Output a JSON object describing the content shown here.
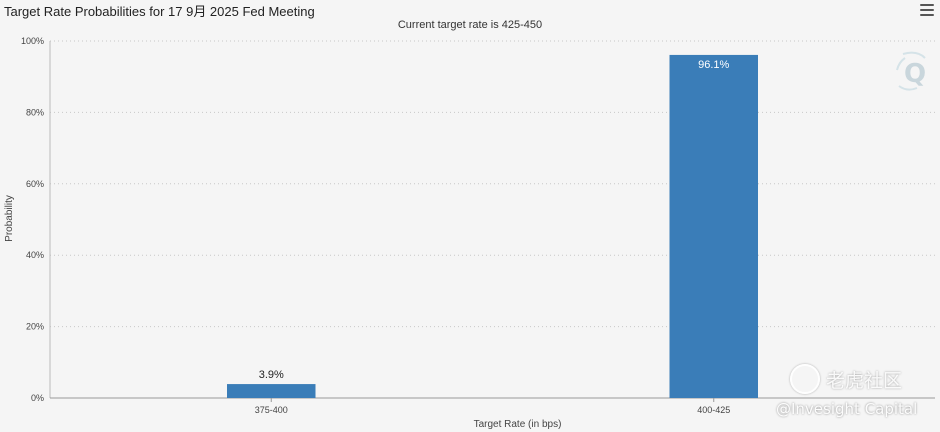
{
  "header": {
    "title": "Target Rate Probabilities for 17 9月 2025 Fed Meeting",
    "subtitle": "Current target rate is 425-450"
  },
  "watermarks": {
    "community": "老虎社区",
    "handle": "@Invesight Capital",
    "q_logo": "Q"
  },
  "colors": {
    "bar": "#3a7db8",
    "grid": "#c8c8c8",
    "background": "#f5f5f5"
  },
  "chart_data": {
    "type": "bar",
    "title": "Target Rate Probabilities for 17 9月 2025 Fed Meeting",
    "subtitle": "Current target rate is 425-450",
    "xlabel": "Target Rate (in bps)",
    "ylabel": "Probability",
    "categories": [
      "375-400",
      "400-425"
    ],
    "values": [
      3.9,
      96.1
    ],
    "data_labels": [
      "3.9%",
      "96.1%"
    ],
    "ylim": [
      0,
      100
    ],
    "yticks": [
      0,
      20,
      40,
      60,
      80,
      100
    ],
    "ytick_labels": [
      "0%",
      "20%",
      "40%",
      "60%",
      "80%",
      "100%"
    ],
    "grid": true
  }
}
